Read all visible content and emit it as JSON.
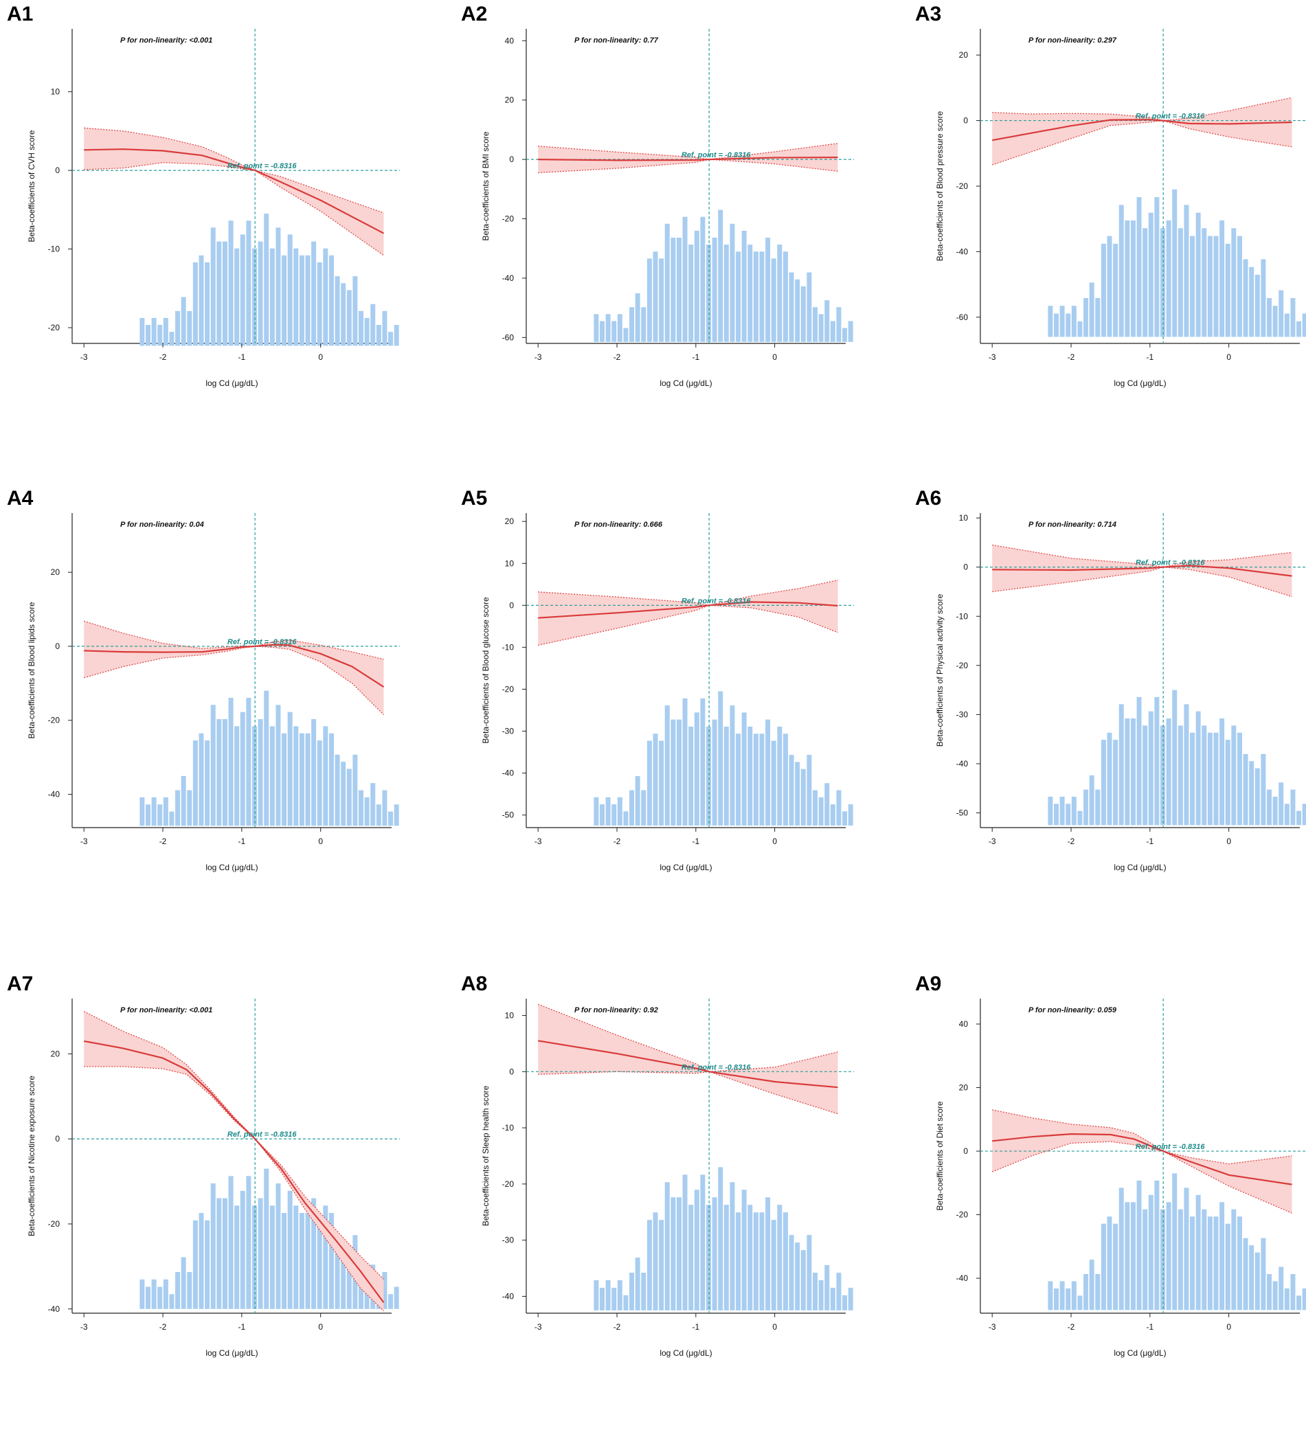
{
  "histogram": {
    "bins_start": -2.3,
    "bin_width": 0.075,
    "counts": [
      4,
      3,
      4,
      3,
      4,
      2,
      5,
      7,
      5,
      12,
      13,
      12,
      17,
      15,
      15,
      18,
      14,
      16,
      18,
      14,
      15,
      19,
      14,
      17,
      13,
      16,
      14,
      13,
      13,
      15,
      12,
      14,
      13,
      10,
      9,
      8,
      10,
      5,
      4,
      6,
      3,
      5,
      2,
      3
    ]
  },
  "shared": {
    "xlabel": "log Cd (μg/dL)",
    "xlim": [
      -3.15,
      0.9
    ],
    "xticks": [
      -3,
      -2,
      -1,
      0
    ],
    "ref_x": -0.8316,
    "ref_label": "Ref. point = -0.8316"
  },
  "chart_data": [
    {
      "id": "A1",
      "type": "line",
      "label": "A1",
      "ylabel": "Beta-coefficients of CVH score",
      "p_label": "P for non-linearity: <0.001",
      "ylim": [
        -22,
        18
      ],
      "yticks": [
        -20,
        -10,
        0,
        10
      ],
      "x": [
        -3,
        -2.5,
        -2,
        -1.5,
        -1.2,
        -1,
        -0.8316,
        -0.5,
        0,
        0.8
      ],
      "y": [
        2.6,
        2.7,
        2.5,
        1.9,
        1.0,
        0.4,
        0,
        -1.5,
        -3.8,
        -8.0
      ],
      "lower": [
        0.1,
        0.3,
        1.0,
        0.8,
        0.5,
        0.2,
        0,
        -2.2,
        -5.2,
        -10.8
      ],
      "upper": [
        5.4,
        5.0,
        4.2,
        3.0,
        1.7,
        0.7,
        0,
        -0.8,
        -2.6,
        -5.4
      ],
      "hist_bottom": -22.3,
      "hist_top": -5.5
    },
    {
      "id": "A2",
      "type": "line",
      "label": "A2",
      "ylabel": "Beta-coefficients of BMI score",
      "p_label": "P for non-linearity: 0.77",
      "ylim": [
        -62,
        44
      ],
      "yticks": [
        -60,
        -40,
        -20,
        0,
        20,
        40
      ],
      "x": [
        -3,
        -2,
        -1,
        -0.8316,
        0,
        0.8
      ],
      "y": [
        0.0,
        -0.3,
        -0.2,
        0,
        0.6,
        0.7
      ],
      "lower": [
        -4.5,
        -3.0,
        -1.0,
        0,
        -1.5,
        -4.0
      ],
      "upper": [
        4.5,
        2.5,
        0.7,
        0,
        2.6,
        5.4
      ],
      "hist_bottom": -61.5,
      "hist_top": -17
    },
    {
      "id": "A3",
      "type": "line",
      "label": "A3",
      "ylabel": "Beta-coefficients of Blood pressure score",
      "p_label": "P for non-linearity: 0.297",
      "ylim": [
        -68,
        28
      ],
      "yticks": [
        -60,
        -40,
        -20,
        0,
        20
      ],
      "x": [
        -3,
        -2.5,
        -2,
        -1.5,
        -1,
        -0.8316,
        -0.5,
        0,
        0.8
      ],
      "y": [
        -6.0,
        -3.8,
        -1.6,
        0.2,
        0.3,
        0,
        -0.9,
        -1.0,
        -0.5
      ],
      "lower": [
        -13.5,
        -9.5,
        -5.5,
        -1.5,
        -0.5,
        0,
        -2.5,
        -5.0,
        -8.0
      ],
      "upper": [
        2.5,
        2.0,
        2.2,
        2.0,
        1.0,
        0,
        0.8,
        3.0,
        7.0
      ],
      "hist_bottom": -66,
      "hist_top": -21
    },
    {
      "id": "A4",
      "type": "line",
      "label": "A4",
      "ylabel": "Beta-coefficients of Blood lipids score",
      "p_label": "P for non-linearity: 0.04",
      "ylim": [
        -49,
        36
      ],
      "yticks": [
        -40,
        -20,
        0,
        20
      ],
      "x": [
        -3,
        -2.5,
        -2,
        -1.5,
        -1.2,
        -1,
        -0.8316,
        -0.6,
        -0.4,
        0,
        0.4,
        0.8
      ],
      "y": [
        -1.2,
        -1.5,
        -1.6,
        -1.5,
        -0.8,
        -0.2,
        0,
        0.4,
        0.3,
        -2.0,
        -5.5,
        -11.0
      ],
      "lower": [
        -8.5,
        -5.5,
        -3.2,
        -2.3,
        -1.4,
        -0.5,
        0,
        -0.3,
        -0.8,
        -4.2,
        -10.0,
        -18.5
      ],
      "upper": [
        6.8,
        3.5,
        0.8,
        -0.6,
        -0.2,
        0.1,
        0,
        1.2,
        1.7,
        0.3,
        -1.5,
        -3.5
      ],
      "hist_bottom": -48.5,
      "hist_top": -12
    },
    {
      "id": "A5",
      "type": "line",
      "label": "A5",
      "ylabel": "Beta-coefficients of Blood glucose score",
      "p_label": "P for non-linearity: 0.666",
      "ylim": [
        -53,
        22
      ],
      "yticks": [
        -50,
        -40,
        -30,
        -20,
        -10,
        0,
        10,
        20
      ],
      "x": [
        -3,
        -2,
        -1,
        -0.8316,
        -0.3,
        0.3,
        0.8
      ],
      "y": [
        -3.0,
        -1.8,
        -0.4,
        0,
        0.8,
        0.6,
        -0.1
      ],
      "lower": [
        -9.5,
        -5.5,
        -1.2,
        0,
        -0.6,
        -2.8,
        -6.5
      ],
      "upper": [
        3.2,
        2.0,
        0.6,
        0,
        2.2,
        4.0,
        6.0
      ],
      "hist_bottom": -52.5,
      "hist_top": -20.5
    },
    {
      "id": "A6",
      "type": "line",
      "label": "A6",
      "ylabel": "Beta-coefficients of Physical activity score",
      "p_label": "P for non-linearity: 0.714",
      "ylim": [
        -53,
        11
      ],
      "yticks": [
        -50,
        -40,
        -30,
        -20,
        -10,
        0,
        10
      ],
      "x": [
        -3,
        -2,
        -1,
        -0.8316,
        -0.5,
        0,
        0.8
      ],
      "y": [
        -0.5,
        -0.6,
        -0.2,
        0,
        0.3,
        -0.2,
        -1.8
      ],
      "lower": [
        -5.0,
        -3.0,
        -0.8,
        0,
        -0.5,
        -2.0,
        -6.0
      ],
      "upper": [
        4.5,
        1.8,
        0.5,
        0,
        1.1,
        1.5,
        3.0
      ],
      "hist_bottom": -52.5,
      "hist_top": -25
    },
    {
      "id": "A7",
      "type": "line",
      "label": "A7",
      "ylabel": "Beta-coefficients of Nicotine exposure score",
      "p_label": "P for non-linearity: <0.001",
      "ylim": [
        -41,
        33
      ],
      "yticks": [
        -40,
        -20,
        0,
        20
      ],
      "x": [
        -3,
        -2.5,
        -2,
        -1.7,
        -1.4,
        -1.1,
        -0.8316,
        -0.5,
        -0.2,
        0.2,
        0.5,
        0.8
      ],
      "y": [
        23.0,
        21.3,
        19.0,
        16.3,
        11.0,
        4.8,
        0,
        -7.0,
        -15.0,
        -24.0,
        -31.0,
        -38.5
      ],
      "lower": [
        17.0,
        17.0,
        16.5,
        15.2,
        10.4,
        4.4,
        0,
        -7.8,
        -16.5,
        -27.0,
        -35.0,
        -40.5
      ],
      "upper": [
        30.0,
        25.3,
        21.5,
        17.5,
        11.6,
        5.2,
        0,
        -6.2,
        -13.5,
        -21.5,
        -27.5,
        -33.0
      ],
      "hist_bottom": -40,
      "hist_top": -7
    },
    {
      "id": "A8",
      "type": "line",
      "label": "A8",
      "ylabel": "Beta-coefficients of Sleep health score",
      "p_label": "P for non-linearity: 0.92",
      "ylim": [
        -43,
        13
      ],
      "yticks": [
        -40,
        -30,
        -20,
        -10,
        0,
        10
      ],
      "x": [
        -3,
        -2,
        -1,
        -0.8316,
        0,
        0.8
      ],
      "y": [
        5.5,
        3.2,
        0.6,
        0,
        -1.8,
        -2.8
      ],
      "lower": [
        -0.5,
        0.0,
        -0.3,
        0,
        -4.0,
        -7.5
      ],
      "upper": [
        12.0,
        6.5,
        1.4,
        0,
        0.8,
        3.5
      ],
      "hist_bottom": -42.5,
      "hist_top": -17
    },
    {
      "id": "A9",
      "type": "line",
      "label": "A9",
      "ylabel": "Beta-coefficients of Diet score",
      "p_label": "P for non-linearity: 0.059",
      "ylim": [
        -51,
        48
      ],
      "yticks": [
        -40,
        -20,
        0,
        20,
        40
      ],
      "x": [
        -3,
        -2.5,
        -2,
        -1.5,
        -1.2,
        -1,
        -0.8316,
        -0.5,
        0,
        0.8
      ],
      "y": [
        3.2,
        4.5,
        5.4,
        5.2,
        3.8,
        1.7,
        0,
        -3.2,
        -7.5,
        -10.5
      ],
      "lower": [
        -6.5,
        -1.5,
        2.5,
        3.0,
        2.0,
        0.7,
        0,
        -4.5,
        -11.0,
        -19.5
      ],
      "upper": [
        13.0,
        10.5,
        8.5,
        7.4,
        5.6,
        2.7,
        0,
        -2.0,
        -4.0,
        -1.5
      ],
      "hist_bottom": -50,
      "hist_top": -7
    }
  ]
}
